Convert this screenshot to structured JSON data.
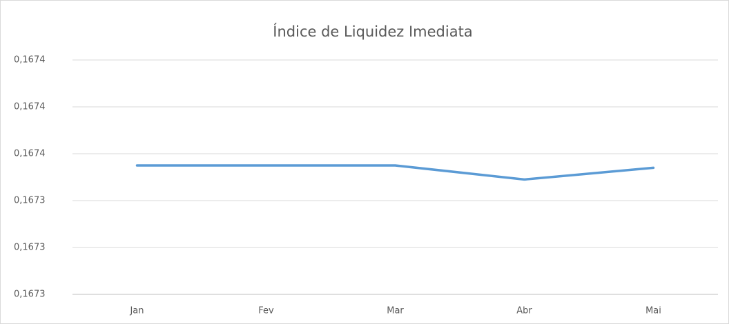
{
  "chart_data": {
    "type": "line",
    "title": "Índice de Liquidez Imediata",
    "categories": [
      "Jan",
      "Fev",
      "Mar",
      "Abr",
      "Mai"
    ],
    "series": [
      {
        "name": "Índice de Liquidez Imediata",
        "color": "#5b9bd5",
        "values": [
          0.167355,
          0.167355,
          0.167355,
          0.167349,
          0.167354
        ]
      }
    ],
    "ylim": [
      0.1673,
      0.1674
    ],
    "yticks": [
      {
        "value": 0.1673,
        "label": "0,1673"
      },
      {
        "value": 0.16732,
        "label": "0,1673"
      },
      {
        "value": 0.16734,
        "label": "0,1673"
      },
      {
        "value": 0.16736,
        "label": "0,1674"
      },
      {
        "value": 0.16738,
        "label": "0,1674"
      },
      {
        "value": 0.1674,
        "label": "0,1674"
      }
    ],
    "grid": true
  }
}
